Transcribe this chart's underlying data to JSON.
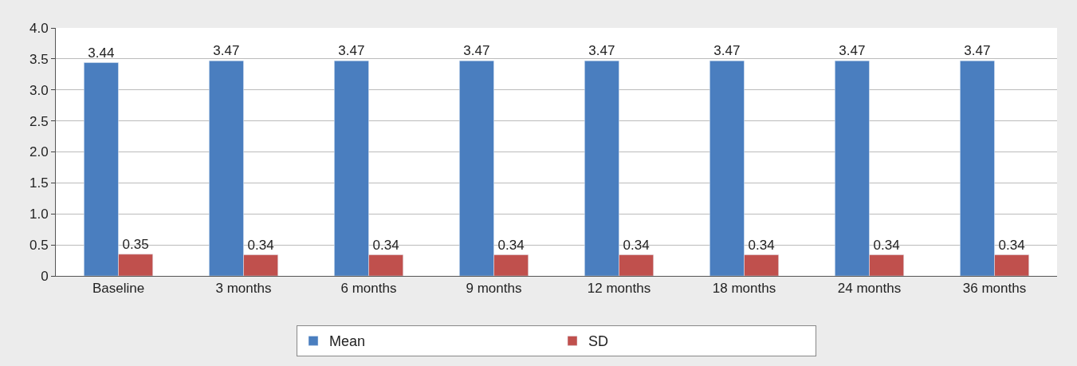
{
  "chart_data": {
    "type": "bar",
    "categories": [
      "Baseline",
      "3 months",
      "6 months",
      "9 months",
      "12 months",
      "18 months",
      "24 months",
      "36 months"
    ],
    "series": [
      {
        "name": "Mean",
        "color": "#4a7ebf",
        "values": [
          3.44,
          3.47,
          3.47,
          3.47,
          3.47,
          3.47,
          3.47,
          3.47
        ]
      },
      {
        "name": "SD",
        "color": "#c0504d",
        "values": [
          0.35,
          0.34,
          0.34,
          0.34,
          0.34,
          0.34,
          0.34,
          0.34
        ]
      }
    ],
    "ylim": [
      0,
      4
    ],
    "yticks": [
      0,
      {
        "value": 0.5,
        "label": "0.5"
      },
      {
        "value": 1,
        "label": "1.0"
      },
      {
        "value": 1.5,
        "label": "1.5"
      },
      {
        "value": 2,
        "label": "2.0"
      },
      {
        "value": 2.5,
        "label": "2.5"
      },
      {
        "value": 3,
        "label": "3.0"
      },
      {
        "value": 3.5,
        "label": "3.5"
      },
      {
        "value": 4,
        "label": "4.0"
      }
    ],
    "grid": "y",
    "legend": "bottom",
    "data_labels": true
  }
}
